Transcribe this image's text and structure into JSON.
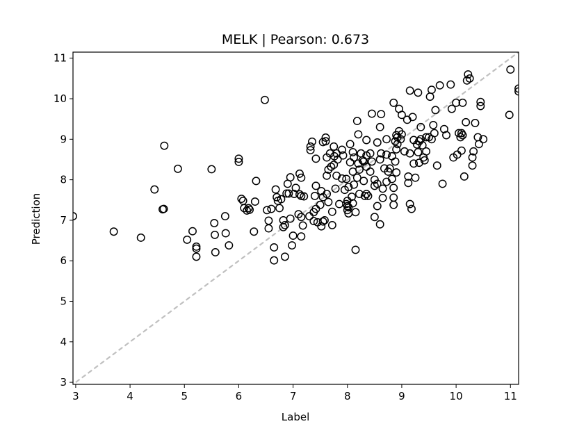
{
  "chart_data": {
    "type": "scatter",
    "title": "MELK  |  Pearson: 0.673",
    "xlabel": "Label",
    "ylabel": "Prediction",
    "xlim": [
      2.95,
      11.15
    ],
    "ylim": [
      2.95,
      11.15
    ],
    "xticks": [
      3,
      4,
      5,
      6,
      7,
      8,
      9,
      10,
      11
    ],
    "yticks": [
      3,
      4,
      5,
      6,
      7,
      8,
      9,
      10,
      11
    ],
    "grid": false,
    "legend": "none",
    "marker": "open-circle",
    "marker_color": "#000000",
    "reference_line": {
      "from": [
        3,
        3
      ],
      "to": [
        11.15,
        11.15
      ],
      "style": "dashed",
      "color": "#c0c0c0"
    },
    "points": [
      [
        2.95,
        7.1
      ],
      [
        3.7,
        6.72
      ],
      [
        4.2,
        6.57
      ],
      [
        4.45,
        7.76
      ],
      [
        4.6,
        7.27
      ],
      [
        4.62,
        7.28
      ],
      [
        4.63,
        8.84
      ],
      [
        4.88,
        8.27
      ],
      [
        5.05,
        6.52
      ],
      [
        5.15,
        6.73
      ],
      [
        5.22,
        6.35
      ],
      [
        5.22,
        6.3
      ],
      [
        5.22,
        6.1
      ],
      [
        5.5,
        8.26
      ],
      [
        5.55,
        6.93
      ],
      [
        5.56,
        6.64
      ],
      [
        5.57,
        6.21
      ],
      [
        5.75,
        7.1
      ],
      [
        5.76,
        6.68
      ],
      [
        5.82,
        6.38
      ],
      [
        6.0,
        8.52
      ],
      [
        6.0,
        8.44
      ],
      [
        6.05,
        7.53
      ],
      [
        6.08,
        7.48
      ],
      [
        6.1,
        7.3
      ],
      [
        6.15,
        7.24
      ],
      [
        6.18,
        7.3
      ],
      [
        6.2,
        7.26
      ],
      [
        6.28,
        6.72
      ],
      [
        6.3,
        7.46
      ],
      [
        6.32,
        7.97
      ],
      [
        6.48,
        9.97
      ],
      [
        6.52,
        7.25
      ],
      [
        6.55,
        6.99
      ],
      [
        6.55,
        6.8
      ],
      [
        6.6,
        7.28
      ],
      [
        6.65,
        6.33
      ],
      [
        6.65,
        6.01
      ],
      [
        6.68,
        7.76
      ],
      [
        6.7,
        7.57
      ],
      [
        6.72,
        7.48
      ],
      [
        6.75,
        7.3
      ],
      [
        6.78,
        7.52
      ],
      [
        6.82,
        7.0
      ],
      [
        6.82,
        6.83
      ],
      [
        6.85,
        6.88
      ],
      [
        6.85,
        6.1
      ],
      [
        6.88,
        7.66
      ],
      [
        6.9,
        7.9
      ],
      [
        6.92,
        7.66
      ],
      [
        6.95,
        8.06
      ],
      [
        6.95,
        7.04
      ],
      [
        6.98,
        6.38
      ],
      [
        7.0,
        6.62
      ],
      [
        7.02,
        7.65
      ],
      [
        7.05,
        7.8
      ],
      [
        7.1,
        7.15
      ],
      [
        7.12,
        8.15
      ],
      [
        7.12,
        7.64
      ],
      [
        7.15,
        8.05
      ],
      [
        7.15,
        7.6
      ],
      [
        7.15,
        7.08
      ],
      [
        7.15,
        6.6
      ],
      [
        7.18,
        6.87
      ],
      [
        7.2,
        7.59
      ],
      [
        7.3,
        7.1
      ],
      [
        7.32,
        8.82
      ],
      [
        7.32,
        8.73
      ],
      [
        7.35,
        8.94
      ],
      [
        7.38,
        7.2
      ],
      [
        7.38,
        6.98
      ],
      [
        7.4,
        7.6
      ],
      [
        7.42,
        8.52
      ],
      [
        7.42,
        7.85
      ],
      [
        7.42,
        7.28
      ],
      [
        7.45,
        6.95
      ],
      [
        7.5,
        7.38
      ],
      [
        7.52,
        7.72
      ],
      [
        7.52,
        6.85
      ],
      [
        7.55,
        8.93
      ],
      [
        7.55,
        7.57
      ],
      [
        7.55,
        6.97
      ],
      [
        7.58,
        7.0
      ],
      [
        7.6,
        9.04
      ],
      [
        7.6,
        8.95
      ],
      [
        7.62,
        8.55
      ],
      [
        7.62,
        8.1
      ],
      [
        7.62,
        7.65
      ],
      [
        7.65,
        8.25
      ],
      [
        7.65,
        7.45
      ],
      [
        7.68,
        8.65
      ],
      [
        7.7,
        8.32
      ],
      [
        7.72,
        7.21
      ],
      [
        7.72,
        6.88
      ],
      [
        7.75,
        8.82
      ],
      [
        7.75,
        8.37
      ],
      [
        7.76,
        8.58
      ],
      [
        7.78,
        7.78
      ],
      [
        7.8,
        8.65
      ],
      [
        7.8,
        8.1
      ],
      [
        7.82,
        8.5
      ],
      [
        7.85,
        7.4
      ],
      [
        7.9,
        8.74
      ],
      [
        7.9,
        8.03
      ],
      [
        7.92,
        8.6
      ],
      [
        7.95,
        7.75
      ],
      [
        7.98,
        8.02
      ],
      [
        7.98,
        7.4
      ],
      [
        8.0,
        7.48
      ],
      [
        8.0,
        7.35
      ],
      [
        8.0,
        7.25
      ],
      [
        8.02,
        7.82
      ],
      [
        8.02,
        7.32
      ],
      [
        8.02,
        7.17
      ],
      [
        8.05,
        8.88
      ],
      [
        8.05,
        8.43
      ],
      [
        8.08,
        7.58
      ],
      [
        8.1,
        8.68
      ],
      [
        8.1,
        8.2
      ],
      [
        8.1,
        7.42
      ],
      [
        8.12,
        8.55
      ],
      [
        8.12,
        7.88
      ],
      [
        8.15,
        7.2
      ],
      [
        8.15,
        6.27
      ],
      [
        8.18,
        9.45
      ],
      [
        8.18,
        8.05
      ],
      [
        8.2,
        9.12
      ],
      [
        8.2,
        8.4
      ],
      [
        8.22,
        8.25
      ],
      [
        8.22,
        7.65
      ],
      [
        8.25,
        8.65
      ],
      [
        8.28,
        8.48
      ],
      [
        8.3,
        8.45
      ],
      [
        8.3,
        7.97
      ],
      [
        8.32,
        7.6
      ],
      [
        8.35,
        8.98
      ],
      [
        8.35,
        8.6
      ],
      [
        8.35,
        8.32
      ],
      [
        8.35,
        7.65
      ],
      [
        8.38,
        7.6
      ],
      [
        8.42,
        8.65
      ],
      [
        8.42,
        8.2
      ],
      [
        8.45,
        9.63
      ],
      [
        8.45,
        8.45
      ],
      [
        8.5,
        8.0
      ],
      [
        8.5,
        7.85
      ],
      [
        8.5,
        7.08
      ],
      [
        8.55,
        8.92
      ],
      [
        8.55,
        7.9
      ],
      [
        8.55,
        7.35
      ],
      [
        8.6,
        9.3
      ],
      [
        8.6,
        8.5
      ],
      [
        8.6,
        6.9
      ],
      [
        8.62,
        9.62
      ],
      [
        8.62,
        8.65
      ],
      [
        8.65,
        7.78
      ],
      [
        8.65,
        7.55
      ],
      [
        8.68,
        8.28
      ],
      [
        8.72,
        9.0
      ],
      [
        8.72,
        8.62
      ],
      [
        8.72,
        7.95
      ],
      [
        8.75,
        8.2
      ],
      [
        8.78,
        8.28
      ],
      [
        8.82,
        8.58
      ],
      [
        8.82,
        8.02
      ],
      [
        8.85,
        9.9
      ],
      [
        8.85,
        7.8
      ],
      [
        8.85,
        7.56
      ],
      [
        8.85,
        7.38
      ],
      [
        8.88,
        8.95
      ],
      [
        8.88,
        8.45
      ],
      [
        8.9,
        9.1
      ],
      [
        8.9,
        8.75
      ],
      [
        8.9,
        8.18
      ],
      [
        8.92,
        9.05
      ],
      [
        8.92,
        8.88
      ],
      [
        8.95,
        9.2
      ],
      [
        8.95,
        9.75
      ],
      [
        8.98,
        9.0
      ],
      [
        9.0,
        9.6
      ],
      [
        9.0,
        9.12
      ],
      [
        9.05,
        8.7
      ],
      [
        9.1,
        9.48
      ],
      [
        9.12,
        8.08
      ],
      [
        9.12,
        7.92
      ],
      [
        9.15,
        10.2
      ],
      [
        9.15,
        8.65
      ],
      [
        9.15,
        7.4
      ],
      [
        9.18,
        7.28
      ],
      [
        9.2,
        9.55
      ],
      [
        9.22,
        8.98
      ],
      [
        9.22,
        8.4
      ],
      [
        9.25,
        8.05
      ],
      [
        9.28,
        8.87
      ],
      [
        9.3,
        10.15
      ],
      [
        9.3,
        8.68
      ],
      [
        9.32,
        8.95
      ],
      [
        9.32,
        8.42
      ],
      [
        9.35,
        9.0
      ],
      [
        9.35,
        9.3
      ],
      [
        9.38,
        8.85
      ],
      [
        9.4,
        8.55
      ],
      [
        9.42,
        8.48
      ],
      [
        9.45,
        9.05
      ],
      [
        9.45,
        8.7
      ],
      [
        9.5,
        9.05
      ],
      [
        9.52,
        10.05
      ],
      [
        9.55,
        9.0
      ],
      [
        9.55,
        10.22
      ],
      [
        9.58,
        9.35
      ],
      [
        9.6,
        9.15
      ],
      [
        9.62,
        9.72
      ],
      [
        9.65,
        8.35
      ],
      [
        9.7,
        10.33
      ],
      [
        9.75,
        7.9
      ],
      [
        9.78,
        9.25
      ],
      [
        9.82,
        9.1
      ],
      [
        9.9,
        10.35
      ],
      [
        9.92,
        9.75
      ],
      [
        9.95,
        8.55
      ],
      [
        10.0,
        9.9
      ],
      [
        10.02,
        8.62
      ],
      [
        10.05,
        9.15
      ],
      [
        10.08,
        9.05
      ],
      [
        10.1,
        9.15
      ],
      [
        10.1,
        8.72
      ],
      [
        10.12,
        9.1
      ],
      [
        10.12,
        9.9
      ],
      [
        10.15,
        8.08
      ],
      [
        10.18,
        9.42
      ],
      [
        10.2,
        10.45
      ],
      [
        10.22,
        10.6
      ],
      [
        10.25,
        10.5
      ],
      [
        10.3,
        8.35
      ],
      [
        10.3,
        8.55
      ],
      [
        10.32,
        8.7
      ],
      [
        10.35,
        9.4
      ],
      [
        10.4,
        9.05
      ],
      [
        10.42,
        8.88
      ],
      [
        10.45,
        9.92
      ],
      [
        10.45,
        9.82
      ],
      [
        10.5,
        9.0
      ],
      [
        10.98,
        9.6
      ],
      [
        11.0,
        10.72
      ],
      [
        11.15,
        10.25
      ],
      [
        11.15,
        10.18
      ]
    ]
  }
}
